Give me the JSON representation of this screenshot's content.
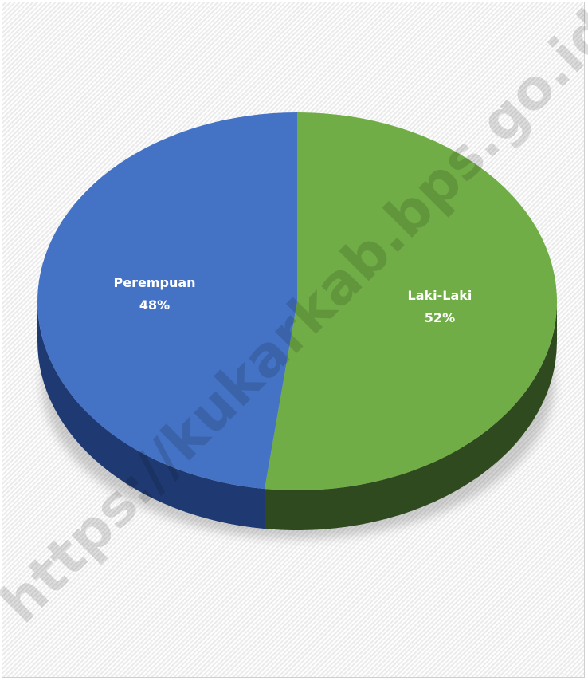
{
  "chart_data": {
    "type": "pie",
    "title": "",
    "style": "3d",
    "slices": [
      {
        "label": "Laki-Laki",
        "value": 52,
        "value_label": "52%",
        "color": "#70ad47",
        "side_color": "#2f4a1e"
      },
      {
        "label": "Perempuan",
        "value": 48,
        "value_label": "48%",
        "color": "#4472c4",
        "side_color": "#1f3a73"
      }
    ]
  },
  "watermark": "https://kukarkab.bps.go.id"
}
